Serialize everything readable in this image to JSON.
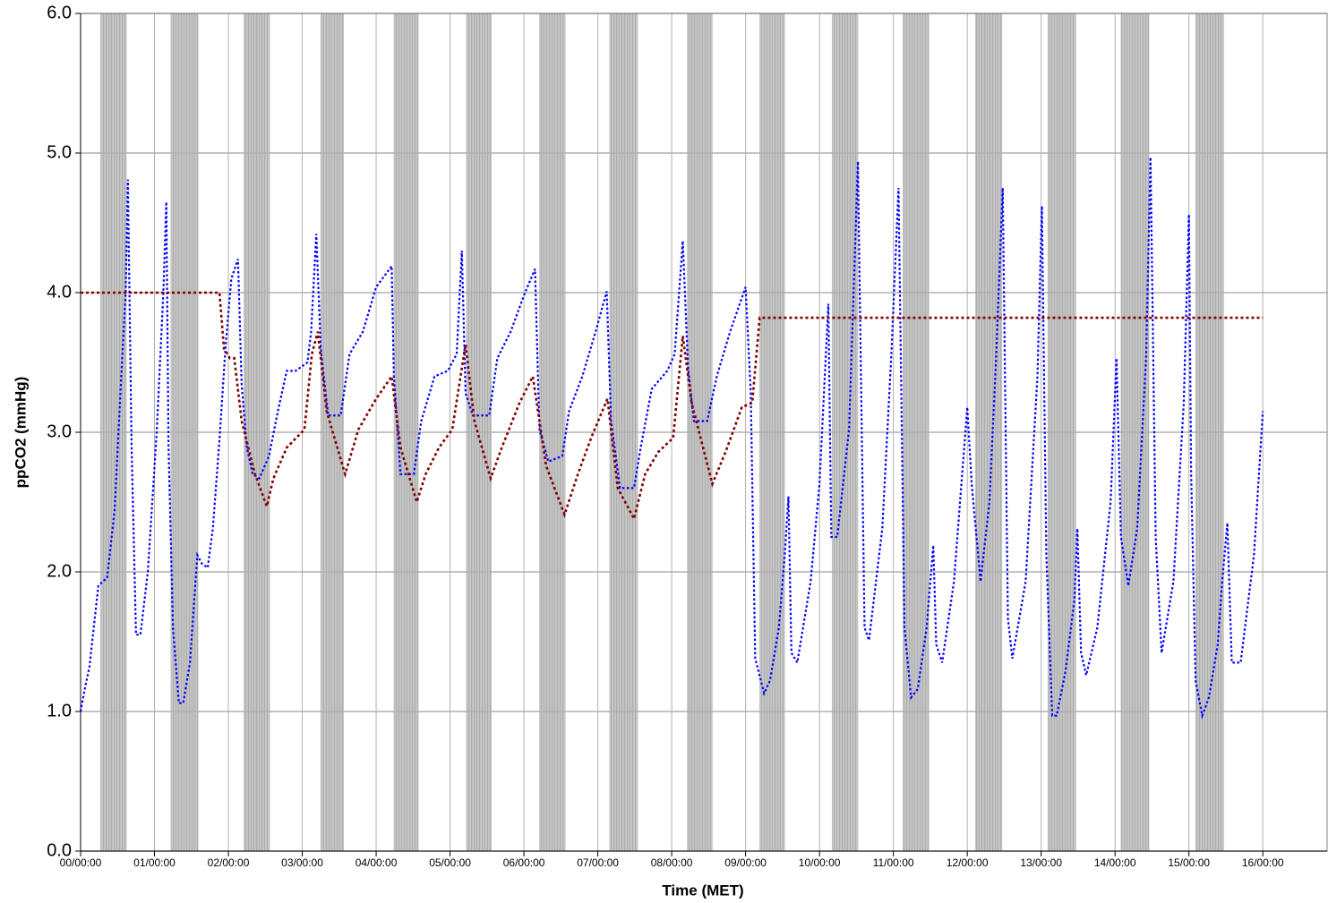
{
  "chart_data": {
    "type": "line",
    "ylabel": "ppCO2 (mmHg)",
    "xlabel": "Time (MET)",
    "xlim": [
      0,
      16.87
    ],
    "ylim": [
      0,
      6
    ],
    "xticks": [
      {
        "value": 0,
        "label": "00/00:00"
      },
      {
        "value": 1,
        "label": "01/00:00"
      },
      {
        "value": 2,
        "label": "02/00:00"
      },
      {
        "value": 3,
        "label": "03/00:00"
      },
      {
        "value": 4,
        "label": "04/00:00"
      },
      {
        "value": 5,
        "label": "05/00:00"
      },
      {
        "value": 6,
        "label": "06/00:00"
      },
      {
        "value": 7,
        "label": "07/00:00"
      },
      {
        "value": 8,
        "label": "08/00:00"
      },
      {
        "value": 9,
        "label": "09/00:00"
      },
      {
        "value": 10,
        "label": "10/00:00"
      },
      {
        "value": 11,
        "label": "11/00:00"
      },
      {
        "value": 12,
        "label": "12/00:00"
      },
      {
        "value": 13,
        "label": "13/00:00"
      },
      {
        "value": 14,
        "label": "14/00:00"
      },
      {
        "value": 15,
        "label": "15/00:00"
      },
      {
        "value": 16,
        "label": "16/00:00"
      }
    ],
    "yticks": [
      {
        "value": 0,
        "label": "0.0"
      },
      {
        "value": 1,
        "label": "1.0"
      },
      {
        "value": 2,
        "label": "2.0"
      },
      {
        "value": 3,
        "label": "3.0"
      },
      {
        "value": 4,
        "label": "4.0"
      },
      {
        "value": 5,
        "label": "5.0"
      },
      {
        "value": 6,
        "label": "6.0"
      }
    ],
    "grid": true,
    "line_style": "dotted",
    "band_color": "#c0c0c0",
    "shaded_intervals": [
      [
        0.27,
        0.62
      ],
      [
        1.22,
        1.59
      ],
      [
        2.21,
        2.56
      ],
      [
        3.25,
        3.56
      ],
      [
        4.24,
        4.57
      ],
      [
        5.22,
        5.56
      ],
      [
        6.21,
        6.56
      ],
      [
        7.16,
        7.54
      ],
      [
        8.21,
        8.55
      ],
      [
        9.19,
        9.53
      ],
      [
        10.17,
        10.52
      ],
      [
        11.13,
        11.48
      ],
      [
        12.11,
        12.47
      ],
      [
        13.09,
        13.47
      ],
      [
        14.08,
        14.46
      ],
      [
        15.09,
        15.47
      ]
    ],
    "series": [
      {
        "color": "#0000ff",
        "x": [
          0,
          0.06,
          0.12,
          0.24,
          0.36,
          0.46,
          0.55,
          0.61,
          0.64,
          0.69,
          0.75,
          0.81,
          0.91,
          1.03,
          1.12,
          1.16,
          1.19,
          1.25,
          1.33,
          1.39,
          1.48,
          1.58,
          1.64,
          1.72,
          1.79,
          1.88,
          1.96,
          2.04,
          2.13,
          2.18,
          2.25,
          2.33,
          2.42,
          2.55,
          2.67,
          2.79,
          2.91,
          3.07,
          3.12,
          3.19,
          3.25,
          3.35,
          3.52,
          3.64,
          3.82,
          4.0,
          4.21,
          4.24,
          4.33,
          4.51,
          4.61,
          4.79,
          4.97,
          5.09,
          5.16,
          5.21,
          5.31,
          5.53,
          5.64,
          5.82,
          6.0,
          6.15,
          6.21,
          6.33,
          6.52,
          6.61,
          6.79,
          6.97,
          7.12,
          7.18,
          7.3,
          7.49,
          7.58,
          7.73,
          7.94,
          8.04,
          8.15,
          8.22,
          8.3,
          8.48,
          8.61,
          8.79,
          9.0,
          9.07,
          9.13,
          9.25,
          9.33,
          9.45,
          9.53,
          9.58,
          9.62,
          9.7,
          9.88,
          10.0,
          10.12,
          10.16,
          10.24,
          10.4,
          10.52,
          10.61,
          10.67,
          10.85,
          10.97,
          11.07,
          11.15,
          11.24,
          11.33,
          11.45,
          11.54,
          11.58,
          11.66,
          11.82,
          12.0,
          12.06,
          12.18,
          12.3,
          12.39,
          12.48,
          12.55,
          12.61,
          12.79,
          12.95,
          13.01,
          13.07,
          13.15,
          13.21,
          13.33,
          13.45,
          13.49,
          13.54,
          13.61,
          13.76,
          13.94,
          14.02,
          14.08,
          14.18,
          14.3,
          14.42,
          14.48,
          14.55,
          14.63,
          14.79,
          14.93,
          15.0,
          15.03,
          15.09,
          15.18,
          15.27,
          15.39,
          15.45,
          15.52,
          15.58,
          15.7,
          15.88,
          16.0
        ],
        "values": [
          1.0,
          1.17,
          1.32,
          1.9,
          1.96,
          2.44,
          3.4,
          4.0,
          4.81,
          2.9,
          1.55,
          1.55,
          2.0,
          3.0,
          4.0,
          4.65,
          2.9,
          1.6,
          1.06,
          1.06,
          1.35,
          2.12,
          2.06,
          2.03,
          2.31,
          2.95,
          3.6,
          4.1,
          4.24,
          3.34,
          2.89,
          2.7,
          2.67,
          2.83,
          3.15,
          3.44,
          3.44,
          3.5,
          3.72,
          4.42,
          3.6,
          3.12,
          3.12,
          3.56,
          3.72,
          4.04,
          4.19,
          3.4,
          2.7,
          2.7,
          3.08,
          3.4,
          3.44,
          3.56,
          4.3,
          3.28,
          3.12,
          3.12,
          3.53,
          3.72,
          3.98,
          4.17,
          3.02,
          2.79,
          2.83,
          3.15,
          3.4,
          3.72,
          4.01,
          3.08,
          2.6,
          2.6,
          2.89,
          3.31,
          3.44,
          3.56,
          4.37,
          3.47,
          3.08,
          3.08,
          3.4,
          3.72,
          4.04,
          3.28,
          1.38,
          1.13,
          1.22,
          1.6,
          2.12,
          2.54,
          1.42,
          1.35,
          1.93,
          2.63,
          3.92,
          2.25,
          2.25,
          3.02,
          4.94,
          1.6,
          1.51,
          2.31,
          3.53,
          4.75,
          1.6,
          1.1,
          1.16,
          1.6,
          2.19,
          1.48,
          1.35,
          1.93,
          3.18,
          2.63,
          1.93,
          2.5,
          3.53,
          4.75,
          1.67,
          1.38,
          1.93,
          3.4,
          4.62,
          2.12,
          0.97,
          0.97,
          1.29,
          1.8,
          2.31,
          1.42,
          1.26,
          1.6,
          2.5,
          3.53,
          2.25,
          1.9,
          2.31,
          3.53,
          4.97,
          2.25,
          1.42,
          1.93,
          3.21,
          4.56,
          2.7,
          1.22,
          0.97,
          1.1,
          1.48,
          1.93,
          2.35,
          1.35,
          1.35,
          2.12,
          3.15
        ]
      },
      {
        "color": "#800000",
        "x": [
          0,
          1.88,
          1.94,
          2.02,
          2.08,
          2.18,
          2.36,
          2.52,
          2.61,
          2.79,
          3.03,
          3.13,
          3.21,
          3.33,
          3.58,
          3.76,
          4.0,
          4.21,
          4.33,
          4.55,
          4.67,
          4.85,
          5.03,
          5.21,
          5.33,
          5.55,
          5.7,
          5.94,
          6.12,
          6.3,
          6.55,
          6.73,
          6.91,
          7.13,
          7.27,
          7.49,
          7.64,
          7.82,
          8.02,
          8.15,
          8.27,
          8.55,
          8.73,
          8.95,
          9.09,
          9.19,
          16.0
        ],
        "values": [
          4.0,
          4.0,
          3.6,
          3.53,
          3.53,
          3.08,
          2.7,
          2.47,
          2.67,
          2.89,
          3.02,
          3.56,
          3.72,
          3.15,
          2.7,
          3.02,
          3.24,
          3.4,
          2.89,
          2.5,
          2.7,
          2.89,
          3.02,
          3.63,
          3.08,
          2.67,
          2.89,
          3.21,
          3.4,
          2.76,
          2.41,
          2.7,
          2.96,
          3.24,
          2.6,
          2.38,
          2.7,
          2.86,
          2.96,
          3.69,
          3.21,
          2.63,
          2.86,
          3.18,
          3.21,
          3.82,
          3.82
        ]
      }
    ]
  }
}
